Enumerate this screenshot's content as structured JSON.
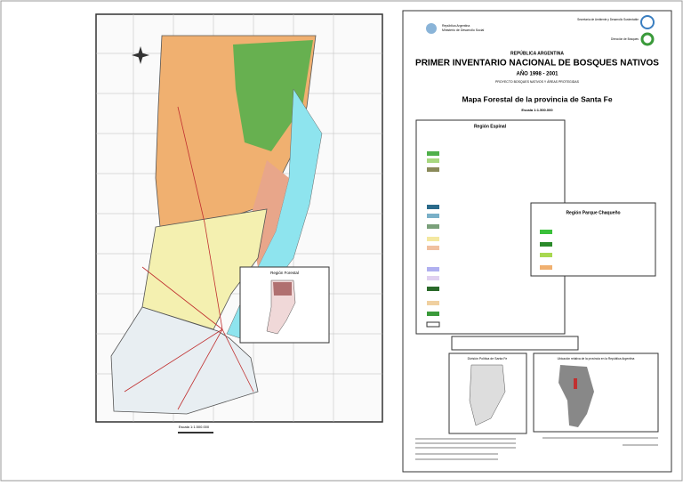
{
  "map": {
    "inset_title": "Región Forestal",
    "scale": "Escala 1:1.500.000"
  },
  "sheet": {
    "header_left": [
      "República Argentina",
      "Ministerio de Desarrollo Social"
    ],
    "header_right": [
      "Secretaría de Ambiente y Desarrollo Sustentable",
      "Dirección de Bosques"
    ],
    "country": "REPÚBLICA ARGENTINA",
    "title": "PRIMER INVENTARIO NACIONAL DE BOSQUES NATIVOS",
    "years": "AÑO 1998 - 2001",
    "project": "PROYECTO BOSQUES NATIVOS Y ÁREAS PROTEGIDAS",
    "map_title": "Mapa Forestal de la provincia de Santa Fe",
    "scale": "Escala 1:1.500.000",
    "legend_espinal": "Región Espinal",
    "legend_chaco": "Región Parque Chaqueño",
    "inset_political": "División Política de Santa Fe",
    "inset_location": "Ubicación relativa de la provincia en la República Argentina"
  }
}
